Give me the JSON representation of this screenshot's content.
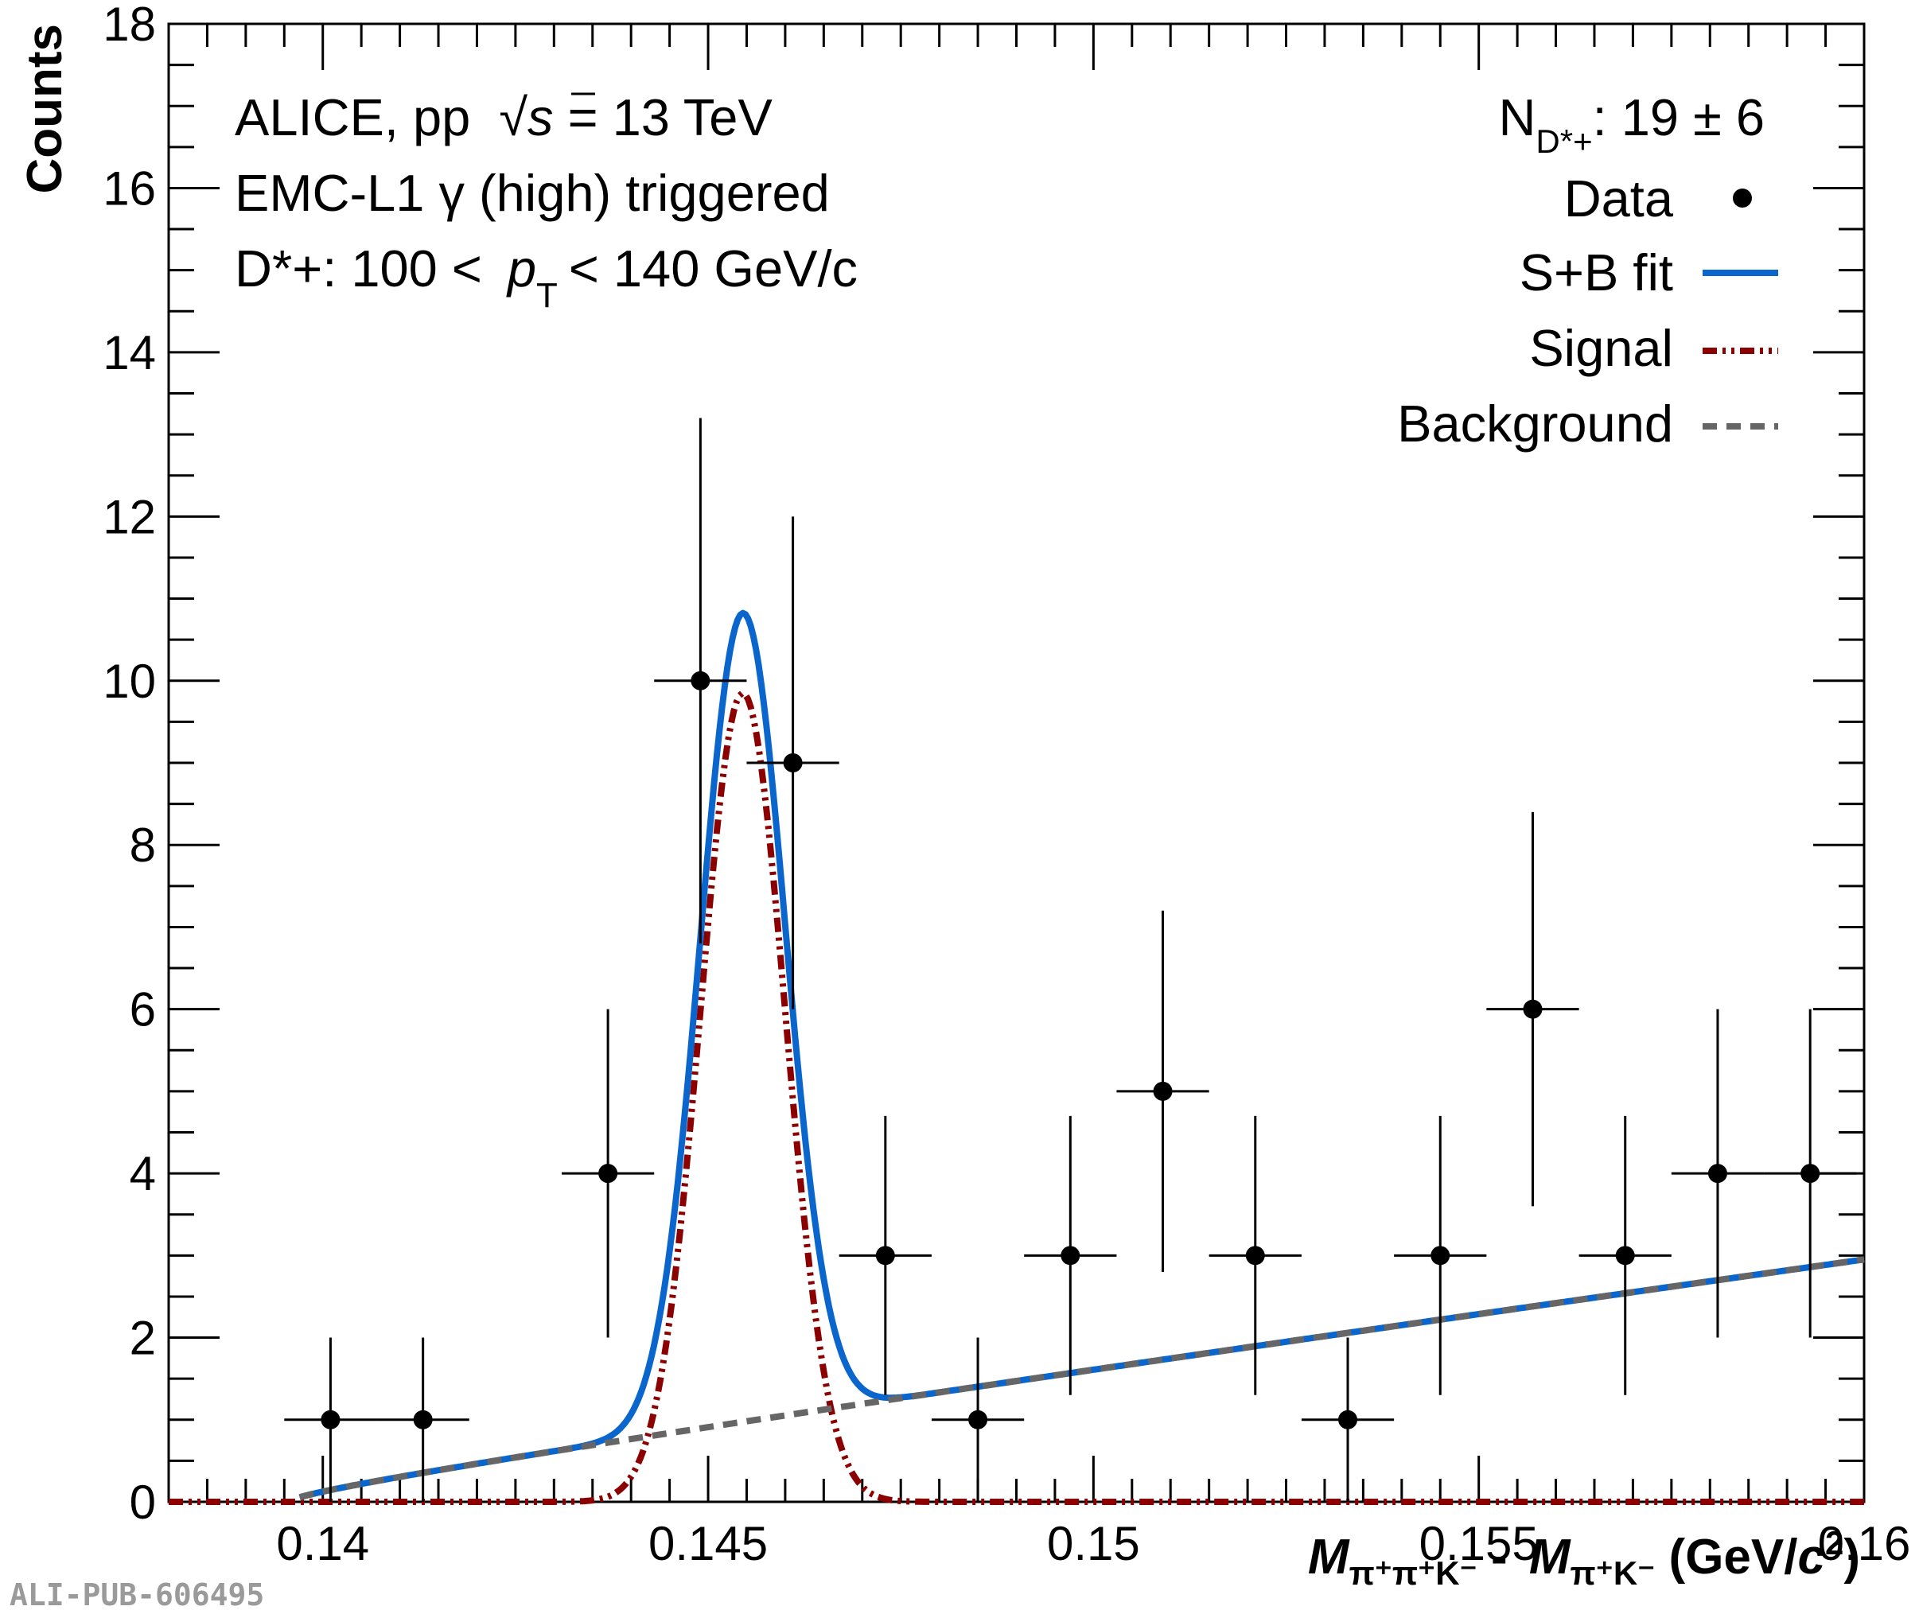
{
  "info": {
    "line1_pre": "ALICE, pp",
    "line1_sqrt": "√",
    "line1_s": "s",
    "line1_post": " = 13 TeV",
    "line2": "EMC-L1 γ (high) triggered",
    "line3_pre": "D*+: 100 <",
    "line3_p": "p",
    "line3_sub": "T",
    "line3_post": "< 140 GeV/c"
  },
  "yield": {
    "n": "N",
    "sub": "D*+",
    "value": ": 19 ± 6"
  },
  "legend": [
    {
      "label": "Data",
      "style": "marker",
      "color": "#000000"
    },
    {
      "label": "S+B fit",
      "style": "solid",
      "color": "#0a66cc"
    },
    {
      "label": "Signal",
      "style": "dash-dot-dot",
      "color": "#8b0000"
    },
    {
      "label": "Background",
      "style": "dashed",
      "color": "#666666"
    }
  ],
  "watermark": "ALI-PUB-606495",
  "chart_data": {
    "type": "scatter",
    "xlabel": "M_{π+π+K-} - M_{π+K-} (GeV/c²)",
    "xlabel_parts": {
      "m1": "M",
      "sub1": "π⁺π⁺K⁻",
      "dash": " - ",
      "m2": "M",
      "sub2": "π⁺K⁻",
      "unit_pre": " (GeV/",
      "unit_c": "c",
      "unit_sup": "2",
      "unit_post": ")"
    },
    "ylabel": "Counts",
    "xlim": [
      0.138,
      0.16
    ],
    "ylim": [
      0,
      18
    ],
    "x_ticks": [
      0.14,
      0.145,
      0.15,
      0.155,
      0.16
    ],
    "x_tick_labels": [
      "0.14",
      "0.145",
      "0.15",
      "0.155",
      "0.16"
    ],
    "y_ticks": [
      0,
      2,
      4,
      6,
      8,
      10,
      12,
      14,
      16,
      18
    ],
    "y_tick_labels": [
      "0",
      "2",
      "4",
      "6",
      "8",
      "10",
      "12",
      "14",
      "16",
      "18"
    ],
    "data_points": {
      "name": "Data",
      "bin_half_width": 0.0006,
      "x": [
        0.1401,
        0.1413,
        0.1437,
        0.1449,
        0.1461,
        0.1473,
        0.1485,
        0.1497,
        0.1509,
        0.1521,
        0.1533,
        0.1545,
        0.1557,
        0.1569,
        0.1581,
        0.1593
      ],
      "y": [
        1,
        1,
        4,
        10,
        9,
        3,
        1,
        3,
        5,
        3,
        1,
        3,
        6,
        3,
        4,
        4
      ],
      "err_low": [
        1,
        1,
        2,
        3.2,
        3,
        1.7,
        1,
        1.7,
        2.2,
        1.7,
        1,
        1.7,
        2.4,
        1.7,
        2,
        2
      ],
      "err_high": [
        1,
        1,
        2,
        3.2,
        3,
        1.7,
        1,
        1.7,
        2.2,
        1.7,
        1,
        1.7,
        2.4,
        1.7,
        2,
        2
      ]
    },
    "fit": {
      "threshold": 0.13957,
      "background_a": 3.5,
      "background_b": 120,
      "signal_amplitude": 9.85,
      "signal_mean": 0.14545,
      "signal_sigma": 0.00055,
      "signal_x_range": [
        0.138,
        0.16
      ],
      "fit_x_range": [
        0.1397,
        0.16
      ]
    },
    "grid": false,
    "legend_position": "top-right"
  }
}
